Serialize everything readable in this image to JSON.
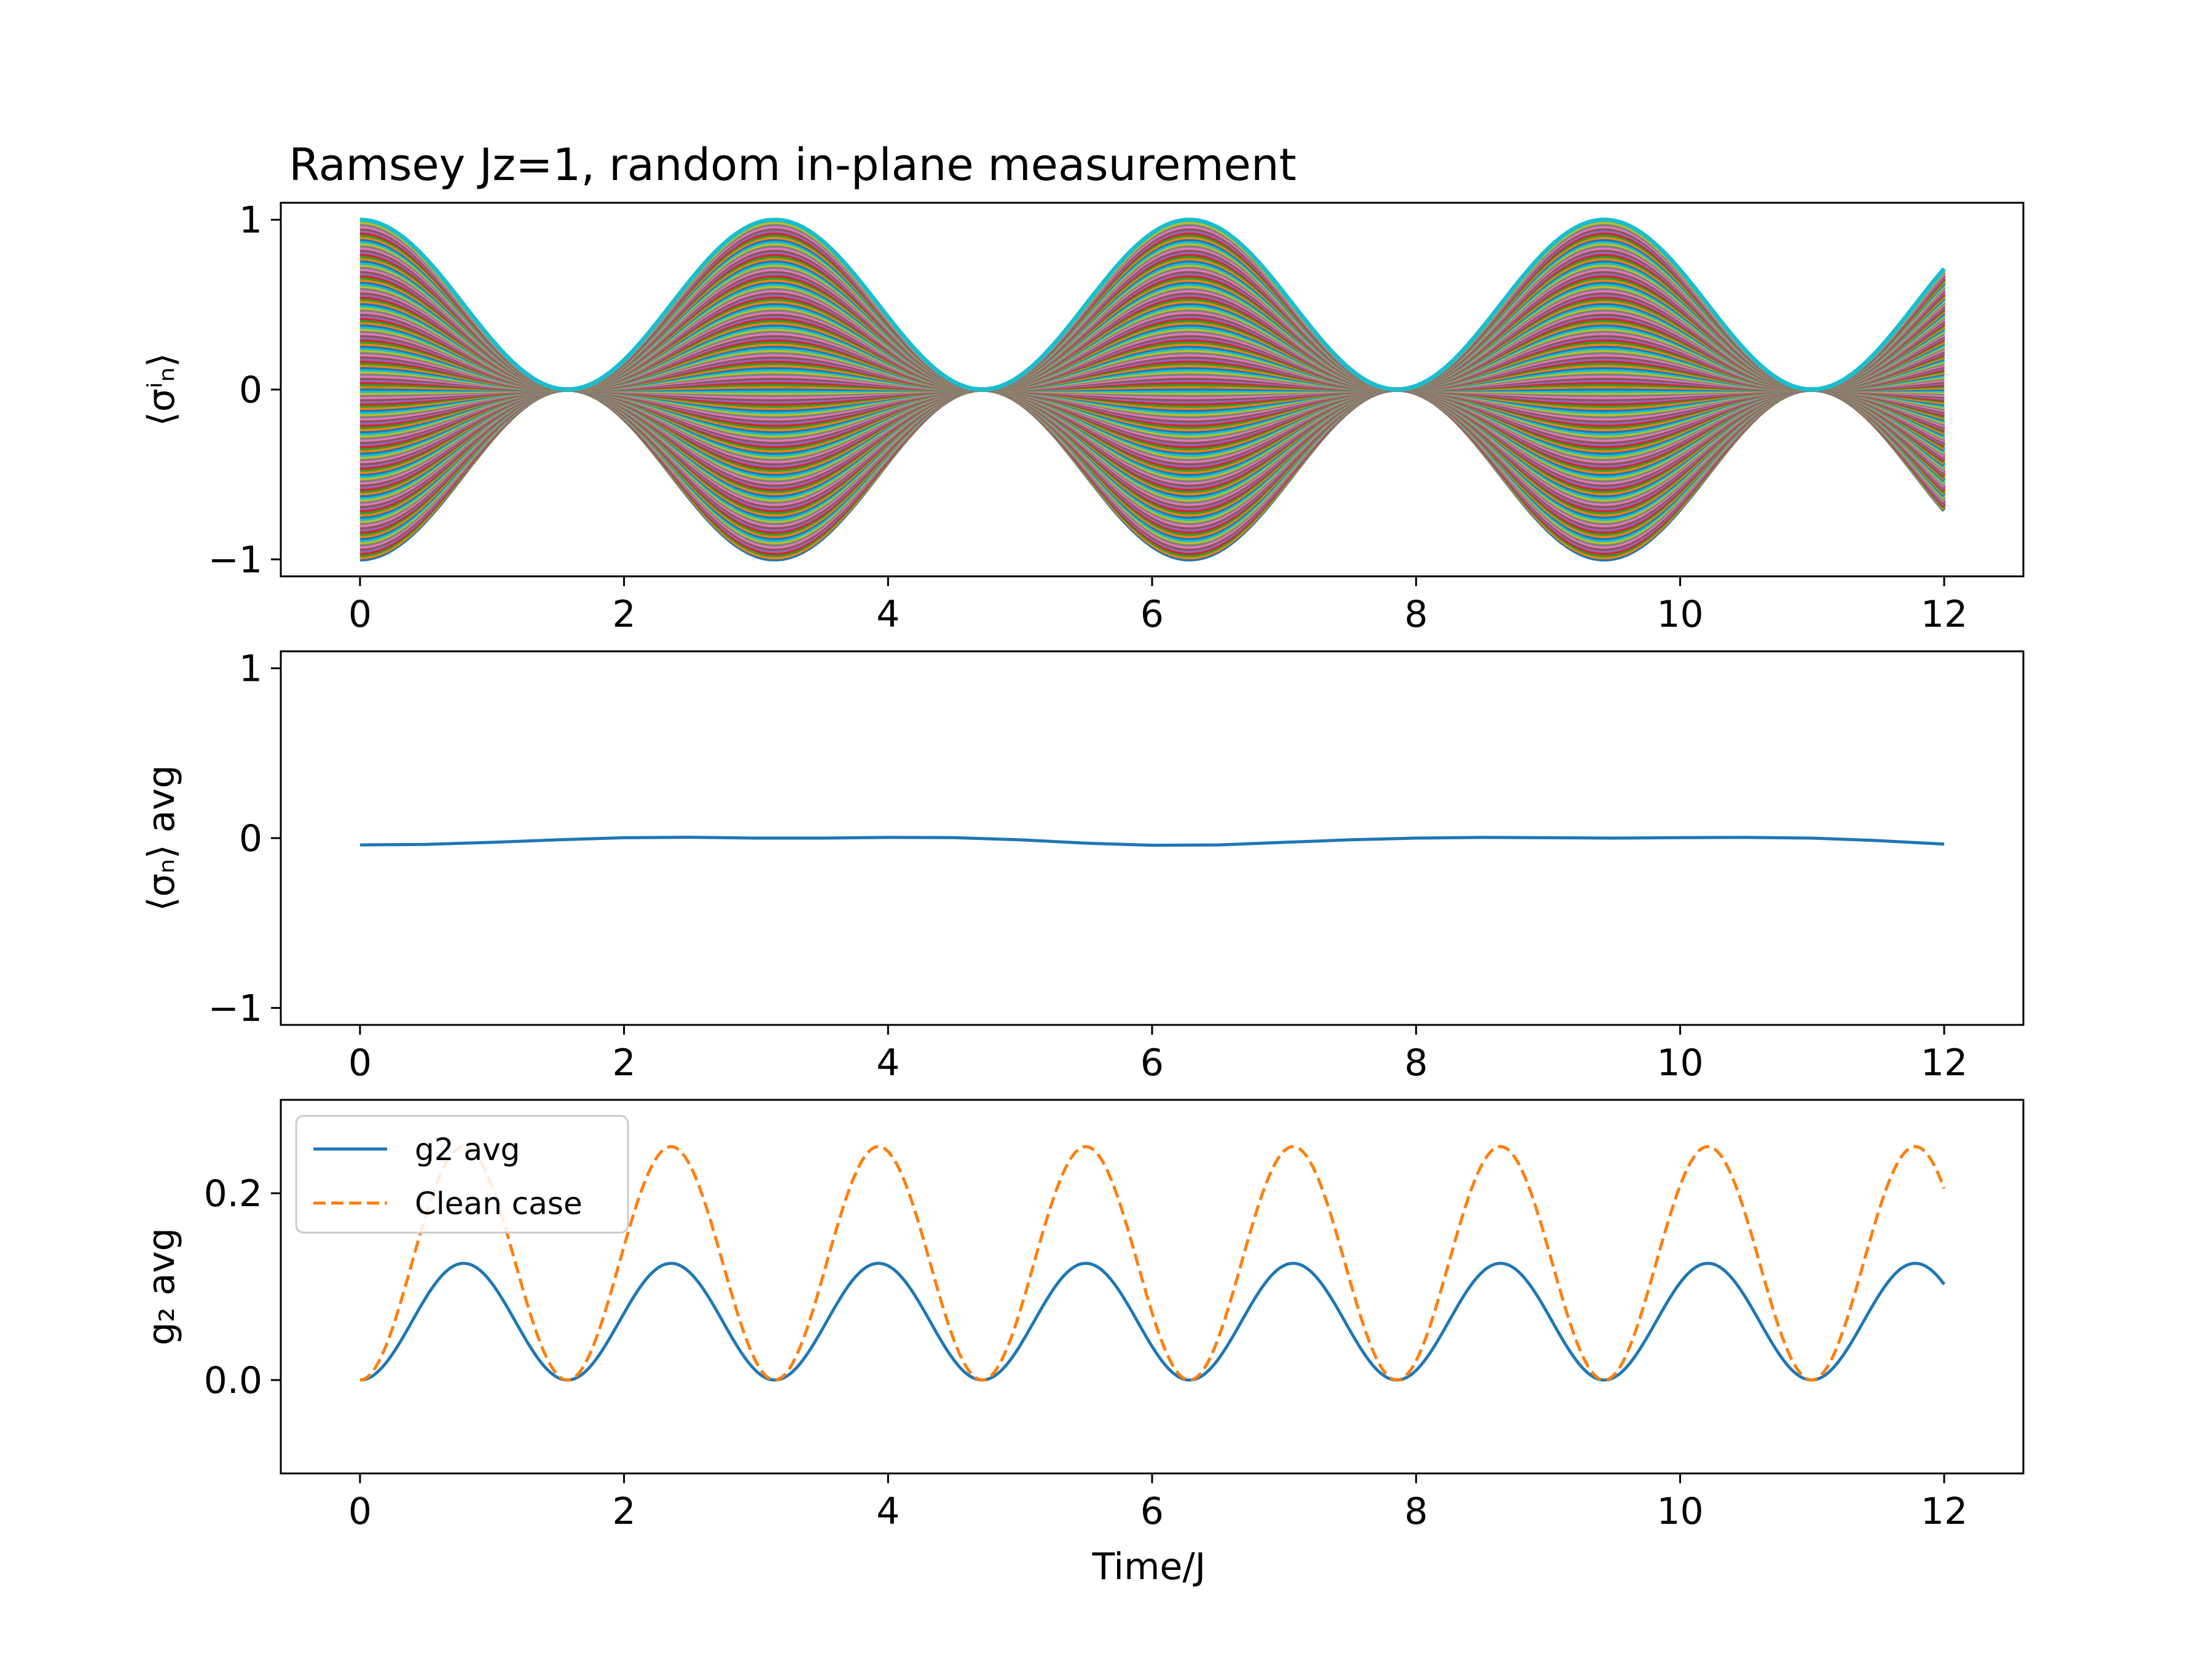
{
  "chart_data": [
    {
      "type": "line",
      "title": "Ramsey Jz=1, random in-plane measurement",
      "ylabel": "⟨σⁱₙ⟩",
      "xlabel": "",
      "xlim": [
        -0.6,
        12.6
      ],
      "ylim": [
        -1.1,
        1.1
      ],
      "xticks": [
        "0",
        "2",
        "4",
        "6",
        "8",
        "10",
        "12"
      ],
      "yticks": [
        "−1",
        "0",
        "1"
      ],
      "grid": false,
      "series_description_values": {
        "count": 160,
        "formula_amplitude_range": [
          -1.0,
          1.0
        ],
        "x_range": [
          0,
          12
        ]
      }
    },
    {
      "type": "line",
      "title": "",
      "ylabel": "⟨σₙ⟩ avg",
      "xlabel": "",
      "xlim": [
        -0.6,
        12.6
      ],
      "ylim": [
        -1.1,
        1.1
      ],
      "xticks": [
        "0",
        "2",
        "4",
        "6",
        "8",
        "10",
        "12"
      ],
      "yticks": [
        "−1",
        "0",
        "1"
      ],
      "grid": false,
      "series": [
        {
          "name": "",
          "color": "#1f77b4",
          "x": [
            0,
            0.5,
            1,
            1.5,
            2,
            2.5,
            3,
            3.5,
            4,
            4.5,
            5,
            5.5,
            6,
            6.5,
            7,
            7.5,
            8,
            8.5,
            9,
            9.5,
            10,
            10.5,
            11,
            11.5,
            12
          ],
          "y": [
            -0.04,
            -0.037,
            -0.025,
            -0.01,
            0.002,
            0.005,
            0.0,
            0.0,
            0.004,
            0.003,
            -0.01,
            -0.03,
            -0.042,
            -0.04,
            -0.025,
            -0.01,
            0.0,
            0.004,
            0.002,
            0.0,
            0.003,
            0.004,
            0.0,
            -0.015,
            -0.035
          ]
        }
      ]
    },
    {
      "type": "line",
      "title": "",
      "ylabel": "g₂ avg",
      "xlabel": "Time/J",
      "xlim": [
        -0.6,
        12.6
      ],
      "ylim": [
        -0.1,
        0.3
      ],
      "xticks": [
        "0",
        "2",
        "4",
        "6",
        "8",
        "10",
        "12"
      ],
      "yticks": [
        "0.0",
        "0.2"
      ],
      "grid": false,
      "legend": {
        "position": "upper-left",
        "entries": [
          {
            "name": "g2 avg",
            "color": "#1f77b4",
            "style": "solid"
          },
          {
            "name": "Clean case",
            "color": "#ff7f0e",
            "style": "dashed"
          }
        ]
      },
      "series": [
        {
          "name": "g2 avg",
          "color": "#1f77b4",
          "style": "solid",
          "x": [
            0,
            0.785,
            1.571,
            2.356,
            3.142,
            3.927,
            4.712,
            5.498,
            6.283,
            7.069,
            7.854,
            8.639,
            9.425,
            10.21,
            10.996,
            11.781,
            12
          ],
          "y": [
            0,
            0.125,
            0,
            0.125,
            0,
            0.125,
            0,
            0.125,
            0,
            0.125,
            0,
            0.125,
            0,
            0.125,
            0,
            0.125,
            0.103
          ]
        },
        {
          "name": "Clean case",
          "color": "#ff7f0e",
          "style": "dashed",
          "x": [
            0,
            0.785,
            1.571,
            2.356,
            3.142,
            3.927,
            4.712,
            5.498,
            6.283,
            7.069,
            7.854,
            8.639,
            9.425,
            10.21,
            10.996,
            11.781,
            12
          ],
          "y": [
            0,
            0.25,
            0,
            0.25,
            0,
            0.25,
            0,
            0.25,
            0,
            0.25,
            0,
            0.25,
            0,
            0.25,
            0,
            0.25,
            0.206
          ]
        }
      ]
    }
  ]
}
